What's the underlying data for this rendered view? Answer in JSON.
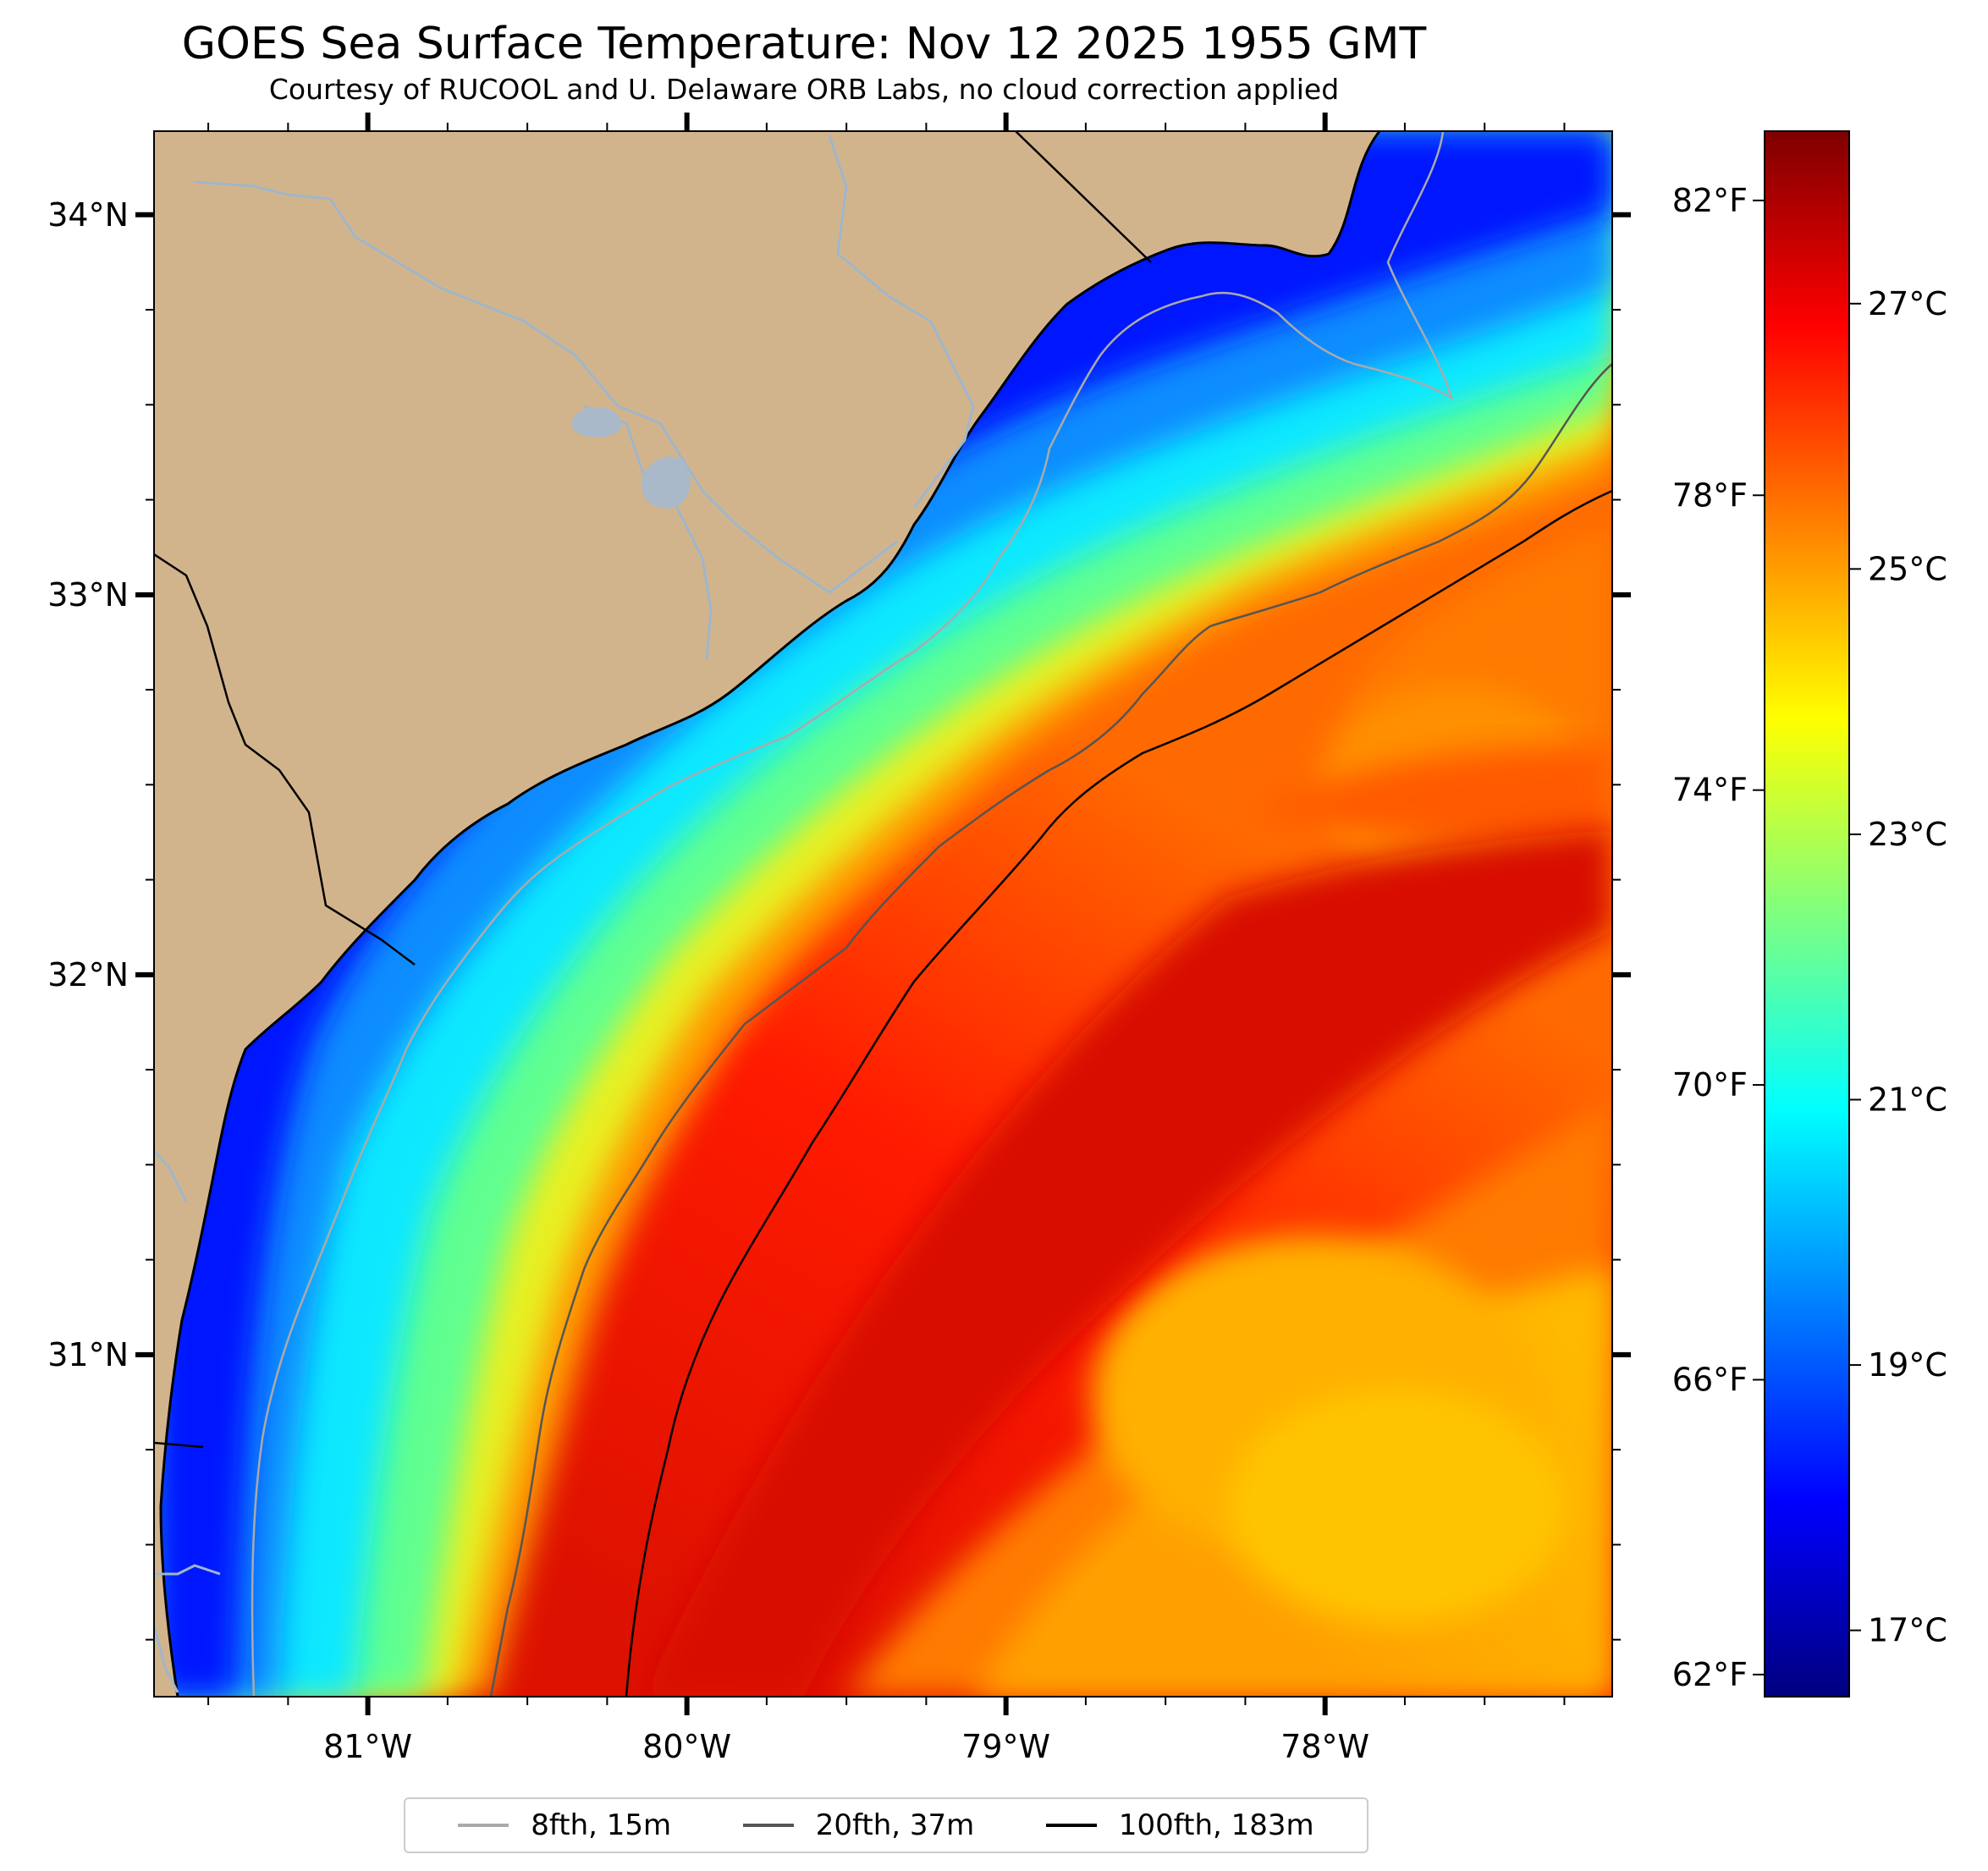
{
  "header": {
    "title": "GOES Sea Surface Temperature: Nov 12 2025 1955 GMT",
    "subtitle": "Courtesy of RUCOOL and U. Delaware ORB Labs, no cloud correction applied"
  },
  "map": {
    "lon_range": [
      -81.67,
      -77.1
    ],
    "lat_range": [
      30.1,
      34.22
    ],
    "lat_ticks": [
      {
        "value": 34,
        "label": "34°N"
      },
      {
        "value": 33,
        "label": "33°N"
      },
      {
        "value": 32,
        "label": "32°N"
      },
      {
        "value": 31,
        "label": "31°N"
      }
    ],
    "lon_ticks": [
      {
        "value": -81,
        "label": "81°W"
      },
      {
        "value": -80,
        "label": "80°W"
      },
      {
        "value": -79,
        "label": "79°W"
      },
      {
        "value": -78,
        "label": "78°W"
      }
    ],
    "colors": {
      "land": "#d2b48c",
      "coast": "#000000",
      "rivers": "#9fb6cc",
      "isobath_8fth": "#aaaaaa",
      "isobath_20fth": "#555555",
      "isobath_100fth": "#000000"
    }
  },
  "colorbar": {
    "celsius_range": [
      16.5,
      28.3
    ],
    "fahrenheit_ticks": [
      {
        "value": 82,
        "label": "82°F"
      },
      {
        "value": 78,
        "label": "78°F"
      },
      {
        "value": 74,
        "label": "74°F"
      },
      {
        "value": 70,
        "label": "70°F"
      },
      {
        "value": 66,
        "label": "66°F"
      },
      {
        "value": 62,
        "label": "62°F"
      }
    ],
    "celsius_ticks": [
      {
        "value": 27,
        "label": "27°C"
      },
      {
        "value": 25,
        "label": "25°C"
      },
      {
        "value": 23,
        "label": "23°C"
      },
      {
        "value": 21,
        "label": "21°C"
      },
      {
        "value": 19,
        "label": "19°C"
      },
      {
        "value": 17,
        "label": "17°C"
      }
    ],
    "colormap": [
      "#00007f",
      "#0000ff",
      "#007fff",
      "#00ffff",
      "#7fff7f",
      "#ffff00",
      "#ff7f00",
      "#ff0000",
      "#7f0000"
    ]
  },
  "legend": {
    "items": [
      {
        "label": "8fth, 15m",
        "color": "#aaaaaa"
      },
      {
        "label": "20fth, 37m",
        "color": "#555555"
      },
      {
        "label": "100fth, 183m",
        "color": "#000000"
      }
    ]
  }
}
